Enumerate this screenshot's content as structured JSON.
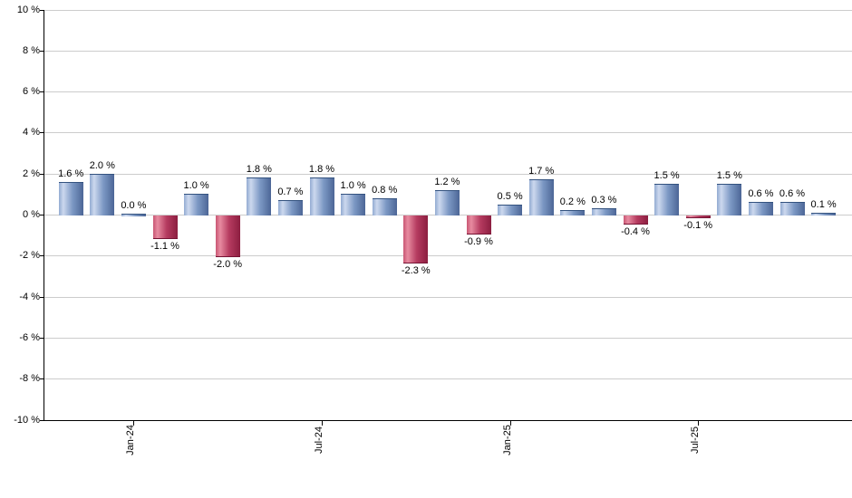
{
  "chart_data": {
    "type": "bar",
    "title": "",
    "xlabel": "",
    "ylabel": "",
    "ylim": [
      -10,
      10
    ],
    "y_tick_step": 2,
    "grid": true,
    "legend_position": "none",
    "y_tick_labels": [
      "10 %",
      "8 %",
      "6 %",
      "4 %",
      "2 %",
      "0 %",
      "-2 %",
      "-4 %",
      "-6 %",
      "-8 %",
      "-10 %"
    ],
    "values": [
      1.6,
      2.0,
      0.0,
      -1.1,
      1.0,
      -2.0,
      1.8,
      0.7,
      1.8,
      1.0,
      0.8,
      -2.3,
      1.2,
      -0.9,
      0.5,
      1.7,
      0.2,
      0.3,
      -0.4,
      1.5,
      -0.1,
      1.5,
      0.6,
      0.6,
      0.1
    ],
    "bar_labels": [
      "1.6 %",
      "2.0 %",
      "0.0 %",
      "-1.1 %",
      "1.0 %",
      "-2.0 %",
      "1.8 %",
      "0.7 %",
      "1.8 %",
      "1.0 %",
      "0.8 %",
      "-2.3 %",
      "1.2 %",
      "-0.9 %",
      "0.5 %",
      "1.7 %",
      "0.2 %",
      "0.3 %",
      "-0.4 %",
      "1.5 %",
      "-0.1 %",
      "1.5 %",
      "0.6 %",
      "0.6 %",
      "0.1 %"
    ],
    "x_ticks": [
      {
        "label": "Jan-24",
        "bar_index": 2
      },
      {
        "label": "Jul-24",
        "bar_index": 8
      },
      {
        "label": "Jan-25",
        "bar_index": 14
      },
      {
        "label": "Jul-25",
        "bar_index": 20
      }
    ],
    "colors": {
      "positive_gradient": [
        "#93abd2",
        "#ccd8ee",
        "#7d99c5",
        "#4c6696"
      ],
      "negative_gradient": [
        "#c95673",
        "#e78ba0",
        "#b53b60",
        "#8c1e40"
      ],
      "gridline": "#cccccc",
      "axis": "#000000",
      "label_text": "#000000",
      "background": "#ffffff"
    }
  }
}
